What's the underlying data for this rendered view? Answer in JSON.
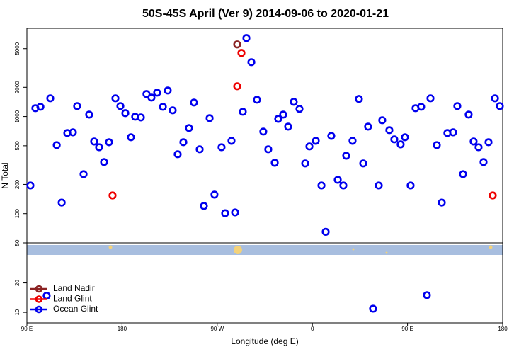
{
  "chart_data": [
    {
      "type": "scatter",
      "title": "50S-45S April (Ver 9)   2014-09-06 to 2020-01-21",
      "ylabel": "N Total",
      "log_y": true,
      "xlim": [
        90,
        540
      ],
      "ylim": [
        50,
        8100
      ],
      "yticks": [
        50,
        100,
        200,
        500,
        1000,
        2000,
        5000
      ],
      "series": [
        {
          "name": "Land Nadir",
          "color": "#8b2323",
          "x": [
            288.9
          ],
          "values": [
            5530
          ]
        },
        {
          "name": "Land Glint",
          "color": "#ee0000",
          "x": [
            171.0,
            288.9,
            292.9,
            530.6
          ],
          "values": [
            154,
            2051,
            4520,
            154
          ]
        },
        {
          "name": "Ocean Glint",
          "color": "#0000ee",
          "x": [
            93.3,
            98.0,
            102.8,
            112.1,
            118.2,
            122.9,
            128.2,
            133.5,
            137.5,
            143.6,
            148.9,
            153.6,
            158.3,
            163.0,
            167.7,
            173.7,
            178.4,
            183.1,
            188.4,
            192.4,
            197.8,
            203.1,
            207.8,
            213.2,
            218.6,
            223.2,
            227.9,
            232.6,
            238.0,
            243.3,
            248.0,
            253.4,
            257.4,
            262.8,
            267.4,
            274.1,
            277.5,
            283.5,
            286.9,
            294.2,
            297.6,
            302.3,
            307.6,
            313.6,
            318.3,
            324.4,
            327.7,
            332.4,
            337.1,
            342.4,
            347.8,
            353.2,
            357.2,
            363.2,
            368.6,
            372.6,
            377.9,
            384.0,
            389.3,
            392.0,
            398.0,
            404.0,
            408.1,
            412.7,
            422.8,
            426.1,
            432.8,
            437.5,
            443.5,
            447.6,
            452.9,
            457.6,
            462.9,
            471.7,
            477.7,
            482.4,
            487.7,
            493.1,
            497.1,
            502.5,
            507.8,
            512.5,
            517.2,
            521.9,
            526.6,
            532.7,
            537.3
          ],
          "values": [
            195,
            1219,
            1260,
            1542,
            508,
            130,
            677,
            688,
            1282,
            255,
            1047,
            553,
            483,
            340,
            544,
            1542,
            1282,
            1084,
            612,
            996,
            979,
            1706,
            1567,
            1763,
            1260,
            1854,
            1159,
            409,
            544,
            761,
            1394,
            460,
            120,
            963,
            157,
            483,
            101,
            562,
            103,
            1120,
            6430,
            3630,
            1490,
            700,
            460,
            334,
            946,
            1047,
            787,
            1418,
            1199,
            329,
            492,
            562,
            195,
            65,
            632,
            223,
            195,
            395,
            562,
            1517,
            329,
            787,
            195,
            916,
            724,
            582,
            517,
            612,
            195,
            1219,
            1260,
            1542,
            508,
            130,
            677,
            688,
            1282,
            255,
            1047,
            553,
            483,
            340,
            544,
            1542,
            1282
          ]
        }
      ]
    },
    {
      "type": "scatter",
      "xlabel": "Longitude (deg E)",
      "log_y": true,
      "xlim": [
        90,
        540
      ],
      "xticks": [
        {
          "value": 90,
          "label": "90 E"
        },
        {
          "value": 180,
          "label": "180"
        },
        {
          "value": 270,
          "label": "90 W"
        },
        {
          "value": 360,
          "label": "0"
        },
        {
          "value": 450,
          "label": "90 E"
        },
        {
          "value": 540,
          "label": "180"
        }
      ],
      "ylim": [
        7.8,
        38.7
      ],
      "yticks": [
        10,
        20
      ],
      "series": [
        {
          "color": "#0000ee",
          "x": [
            108.7,
            417.4,
            468.3
          ],
          "values": [
            14.8,
            10.9,
            15.0
          ]
        }
      ]
    }
  ]
}
